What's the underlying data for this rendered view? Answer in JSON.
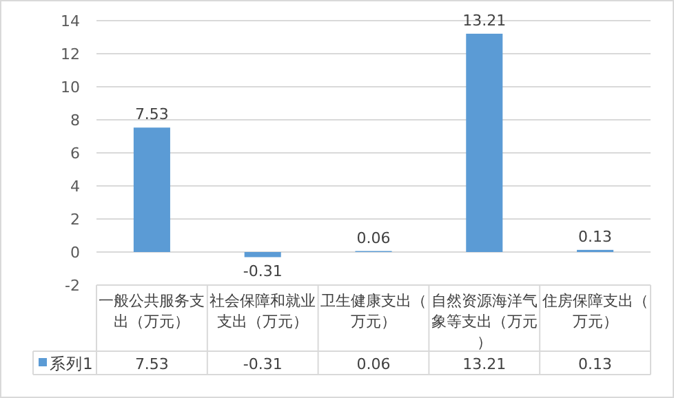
{
  "chart_data": {
    "type": "bar",
    "categories": [
      "一般公共服务支出（万元）",
      "社会保障和就业支出（万元）",
      "卫生健康支出（万元）",
      "自然资源海洋气象等支出（万元）",
      "住房保障支出（万元）"
    ],
    "series": [
      {
        "name": "系列1",
        "color": "#5b9bd5",
        "values": [
          7.53,
          -0.31,
          0.06,
          13.21,
          0.13
        ],
        "value_labels": [
          "7.53",
          "-0.31",
          "0.06",
          "13.21",
          "0.13"
        ]
      }
    ],
    "ylim": [
      -2,
      14
    ],
    "yticks": [
      -2,
      0,
      2,
      4,
      6,
      8,
      10,
      12,
      14
    ],
    "grid": "y",
    "legend": "bottom left",
    "annotations": [
      "7.53",
      "-0.31",
      "0.06",
      "13.21",
      "0.13"
    ]
  }
}
